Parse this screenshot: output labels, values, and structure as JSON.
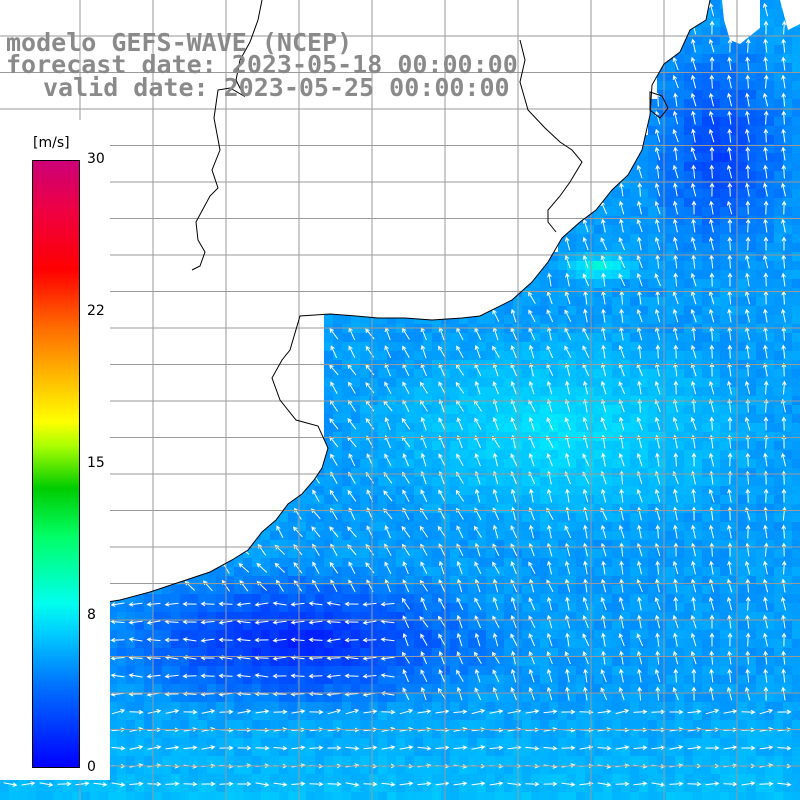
{
  "title": {
    "line1": "modelo GEFS-WAVE (NCEP)",
    "line2": "forecast date: 2023-05-18 00:00:00",
    "line3": "valid date: 2023-05-25 00:00:00"
  },
  "colorbar": {
    "unit": "[m/s]",
    "min": 0,
    "max": 30,
    "ticks": [
      "30",
      "22",
      "15",
      "8",
      "0"
    ],
    "colors": [
      "#0000ff",
      "#0077ff",
      "#00ccff",
      "#00ffee",
      "#00ff66",
      "#00cc00",
      "#ffff00",
      "#ff6600",
      "#ff0000",
      "#cc0077"
    ]
  },
  "map": {
    "field": "wind speed and direction",
    "land_color": "#ffffff",
    "coastline_color": "#000000",
    "grid_color": "#9a9a9a",
    "arrow_color": "#ffffff"
  }
}
